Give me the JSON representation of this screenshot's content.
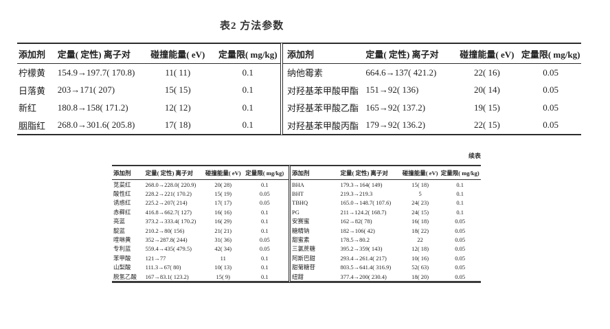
{
  "page": {
    "title": "表2 方法参数",
    "continued_label": "续表"
  },
  "headers": {
    "additive": "添加剂",
    "ion_pair": "定量( 定性) 离子对",
    "collision_energy": "碰撞能量( eV)",
    "loq": "定量限( mg/kg)"
  },
  "table1": {
    "left": {
      "rows": [
        [
          "柠檬黄",
          "154.9→197.7( 170.8)",
          "11( 11)",
          "0.1"
        ],
        [
          "日落黄",
          "203→171( 207)",
          "15( 15)",
          "0.1"
        ],
        [
          "新红",
          "180.8→158( 171.2)",
          "12( 12)",
          "0.1"
        ],
        [
          "胭脂红",
          "268.0→301.6( 205.8)",
          "17( 18)",
          "0.1"
        ]
      ]
    },
    "right": {
      "rows": [
        [
          "纳他霉素",
          "664.6→137( 421.2)",
          "22( 16)",
          "0.05"
        ],
        [
          "对羟基苯甲酸甲酯",
          "151→92( 136)",
          "20( 14)",
          "0.05"
        ],
        [
          "对羟基苯甲酸乙酯",
          "165→92( 137.2)",
          "19( 15)",
          "0.05"
        ],
        [
          "对羟基苯甲酸丙酯",
          "179→92( 136.2)",
          "22( 15)",
          "0.05"
        ]
      ]
    }
  },
  "table2": {
    "left": {
      "rows": [
        [
          "苋菜红",
          "268.0→228.0( 220.9)",
          "20( 28)",
          "0.1"
        ],
        [
          "酸性红",
          "228.2→221( 170.2)",
          "15( 19)",
          "0.05"
        ],
        [
          "诱惑红",
          "225.2→207( 214)",
          "17( 17)",
          "0.05"
        ],
        [
          "赤藓红",
          "416.8→662.7( 127)",
          "16( 16)",
          "0.1"
        ],
        [
          "亮蓝",
          "373.2→333.4( 170.2)",
          "16( 29)",
          "0.1"
        ],
        [
          "靛蓝",
          "210.2→80( 156)",
          "21( 21)",
          "0.1"
        ],
        [
          "喹啉黄",
          "352→287.8( 244)",
          "31( 36)",
          "0.05"
        ],
        [
          "专利蓝",
          "559.4→435( 479.5)",
          "42( 34)",
          "0.05"
        ],
        [
          "苯甲酸",
          "121→77",
          "11",
          "0.1"
        ],
        [
          "山梨酸",
          "111.3→67( 80)",
          "10( 13)",
          "0.1"
        ],
        [
          "脱氢乙酸",
          "167→83.1( 123.2)",
          "15( 9)",
          "0.1"
        ]
      ]
    },
    "right": {
      "rows": [
        [
          "BHA",
          "179.3→164( 149)",
          "15( 18)",
          "0.1"
        ],
        [
          "BHT",
          "219.3→219.3",
          "5",
          "0.1"
        ],
        [
          "TBHQ",
          "165.0→148.7( 107.6)",
          "24( 23)",
          "0.1"
        ],
        [
          "PG",
          "211→124.2( 168.7)",
          "24( 15)",
          "0.1"
        ],
        [
          "安赛蜜",
          "162→82( 78)",
          "16( 18)",
          "0.05"
        ],
        [
          "糖精钠",
          "182→106( 42)",
          "18( 22)",
          "0.05"
        ],
        [
          "甜蜜素",
          "178.5→80.2",
          "22",
          "0.05"
        ],
        [
          "三氯蔗糖",
          "395.2→359( 143)",
          "12( 18)",
          "0.05"
        ],
        [
          "阿斯巴甜",
          "293.4→261.4( 217)",
          "10( 16)",
          "0.05"
        ],
        [
          "甜菊糖苷",
          "803.5→641.4( 316.9)",
          "52( 63)",
          "0.05"
        ],
        [
          "纽甜",
          "377.4→200( 230.4)",
          "18( 20)",
          "0.05"
        ]
      ]
    }
  }
}
